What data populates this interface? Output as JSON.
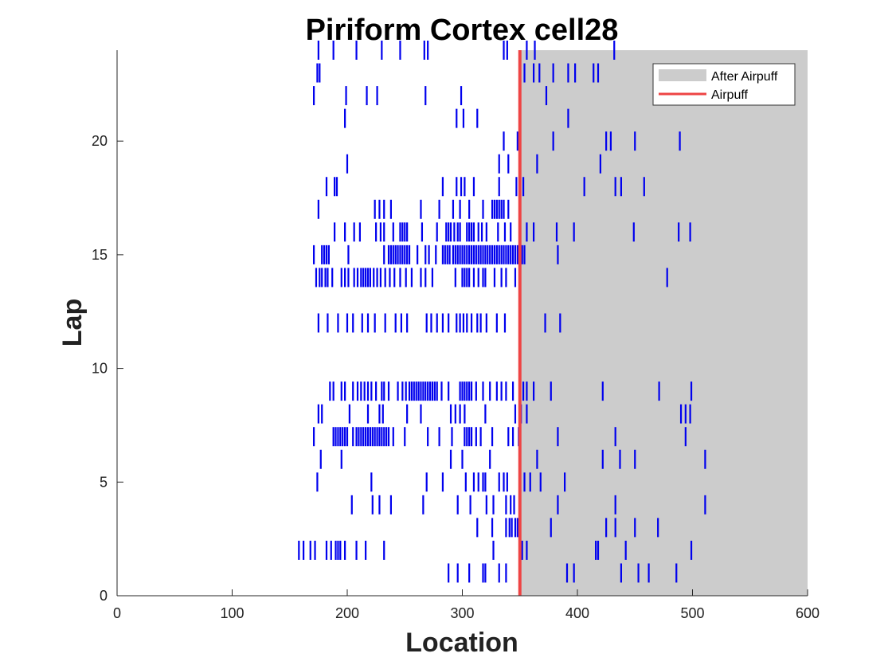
{
  "chart_data": {
    "type": "raster",
    "title": "Piriform Cortex cell28",
    "xlabel": "Location",
    "ylabel": "Lap",
    "xlim": [
      0,
      600
    ],
    "ylim": [
      0,
      24
    ],
    "xticks": [
      0,
      100,
      200,
      300,
      400,
      500,
      600
    ],
    "yticks": [
      0,
      5,
      10,
      15,
      20
    ],
    "grid": false,
    "legend_position": "top-right",
    "airpuff_location": 350,
    "shaded_region": {
      "label": "After Airpuff",
      "from": 350,
      "to": 600,
      "color": "#cccccc"
    },
    "legend": [
      {
        "label": "After Airpuff",
        "kind": "patch",
        "color": "#cccccc"
      },
      {
        "label": "Airpuff",
        "kind": "line",
        "color": "#ee4444"
      }
    ],
    "spike_color": "#0000ee",
    "laps": [
      {
        "lap": 1,
        "locations": [
          288,
          296,
          306,
          318,
          320,
          332,
          338,
          391,
          397,
          438,
          453,
          462,
          486
        ]
      },
      {
        "lap": 2,
        "locations": [
          158,
          162,
          168,
          172,
          182,
          186,
          190,
          192,
          194,
          198,
          208,
          216,
          232,
          327,
          352,
          356,
          416,
          418,
          442,
          499
        ]
      },
      {
        "lap": 3,
        "locations": [
          313,
          326,
          338,
          341,
          343,
          346,
          348,
          377,
          425,
          433,
          450,
          470
        ]
      },
      {
        "lap": 4,
        "locations": [
          204,
          222,
          228,
          238,
          266,
          296,
          307,
          321,
          327,
          338,
          342,
          345,
          383,
          433,
          511
        ]
      },
      {
        "lap": 5,
        "locations": [
          174,
          221,
          269,
          283,
          303,
          310,
          314,
          318,
          320,
          332,
          336,
          339,
          354,
          359,
          368,
          389
        ]
      },
      {
        "lap": 6,
        "locations": [
          177,
          195,
          290,
          300,
          324,
          365,
          422,
          437,
          450,
          511
        ]
      },
      {
        "lap": 7,
        "locations": [
          171,
          188,
          190,
          192,
          194,
          196,
          198,
          200,
          205,
          208,
          210,
          212,
          214,
          216,
          218,
          220,
          222,
          224,
          226,
          228,
          230,
          232,
          234,
          236,
          240,
          250,
          270,
          280,
          291,
          302,
          304,
          306,
          308,
          312,
          316,
          326,
          340,
          344,
          349,
          383,
          433,
          494
        ]
      },
      {
        "lap": 8,
        "locations": [
          175,
          178,
          202,
          218,
          228,
          231,
          252,
          264,
          290,
          294,
          298,
          302,
          320,
          346,
          351,
          356,
          490,
          494,
          498
        ]
      },
      {
        "lap": 9,
        "locations": [
          185,
          188,
          195,
          198,
          205,
          209,
          212,
          215,
          218,
          221,
          225,
          230,
          232,
          236,
          244,
          248,
          251,
          254,
          256,
          258,
          260,
          262,
          264,
          266,
          268,
          270,
          272,
          274,
          276,
          278,
          282,
          288,
          298,
          300,
          302,
          304,
          306,
          308,
          312,
          318,
          324,
          330,
          334,
          338,
          344,
          350,
          353,
          356,
          362,
          377,
          422,
          471,
          499
        ]
      },
      {
        "lap": 12,
        "locations": [
          175,
          183,
          192,
          200,
          205,
          213,
          218,
          224,
          233,
          242,
          247,
          252,
          269,
          273,
          278,
          283,
          288,
          295,
          298,
          301,
          304,
          308,
          313,
          316,
          321,
          330,
          337,
          372,
          385
        ]
      },
      {
        "lap": 14,
        "locations": [
          173,
          176,
          178,
          181,
          183,
          187,
          195,
          198,
          201,
          206,
          209,
          212,
          214,
          216,
          218,
          220,
          223,
          226,
          229,
          233,
          237,
          241,
          246,
          251,
          256,
          264,
          268,
          274,
          294,
          300,
          302,
          304,
          306,
          310,
          314,
          318,
          320,
          328,
          334,
          338,
          346,
          478
        ]
      },
      {
        "lap": 15,
        "locations": [
          171,
          178,
          180,
          182,
          184,
          201,
          232,
          236,
          238,
          240,
          242,
          244,
          246,
          248,
          250,
          252,
          254,
          261,
          268,
          271,
          277,
          283,
          285,
          287,
          289,
          292,
          294,
          296,
          298,
          300,
          302,
          304,
          306,
          308,
          310,
          312,
          314,
          316,
          318,
          320,
          322,
          324,
          326,
          328,
          330,
          332,
          334,
          336,
          338,
          340,
          342,
          344,
          346,
          348,
          350,
          352,
          354,
          383
        ]
      },
      {
        "lap": 16,
        "locations": [
          189,
          198,
          206,
          211,
          225,
          229,
          232,
          240,
          246,
          248,
          250,
          252,
          265,
          278,
          286,
          288,
          290,
          293,
          296,
          298,
          304,
          306,
          308,
          310,
          314,
          317,
          321,
          331,
          337,
          342,
          356,
          362,
          382,
          397,
          449,
          488,
          498
        ]
      },
      {
        "lap": 17,
        "locations": [
          175,
          224,
          228,
          232,
          238,
          264,
          280,
          292,
          298,
          306,
          318,
          326,
          328,
          330,
          332,
          334,
          336,
          340
        ]
      },
      {
        "lap": 18,
        "locations": [
          182,
          189,
          191,
          283,
          295,
          299,
          302,
          310,
          332,
          347,
          353,
          406,
          433,
          438,
          458
        ]
      },
      {
        "lap": 19,
        "locations": [
          200,
          332,
          340,
          365,
          420
        ]
      },
      {
        "lap": 20,
        "locations": [
          336,
          348,
          379,
          425,
          429,
          450,
          489
        ]
      },
      {
        "lap": 21,
        "locations": [
          198,
          295,
          301,
          313,
          392
        ]
      },
      {
        "lap": 22,
        "locations": [
          171,
          199,
          217,
          226,
          268,
          299,
          373,
          468,
          491
        ]
      },
      {
        "lap": 23,
        "locations": [
          174,
          176,
          354,
          362,
          367,
          379,
          392,
          398,
          414,
          418
        ]
      },
      {
        "lap": 24,
        "locations": [
          175,
          188,
          208,
          230,
          246,
          267,
          270,
          336,
          339,
          356,
          363,
          432
        ]
      }
    ]
  }
}
